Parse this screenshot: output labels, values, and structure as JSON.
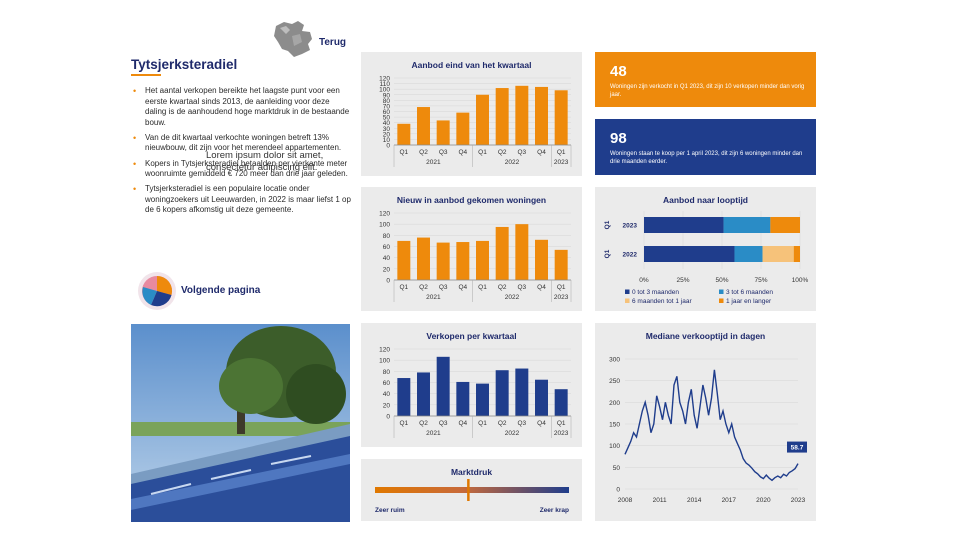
{
  "header": {
    "back_label": "Terug",
    "region_title": "Tytsjerksteradiel"
  },
  "intro": {
    "bullets": [
      "Het aantal verkopen bereikte het laagste punt voor een eerste kwartaal sinds 2013, de aanleiding voor deze daling is de aanhoudend hoge marktdruk in de bestaande bouw.",
      "Van de dit kwartaal verkochte woningen betreft 13% nieuwbouw, dit zijn voor het merendeel appartementen.",
      "Kopers in Tytsjerksteradiel betaalden per vierkante meter woonruimte gemiddeld € 720 meer dan drie jaar geleden.",
      "Tytsjerksteradiel is een populaire locatie onder woningzoekers uit Leeuwarden, in 2022 is maar liefst 1 op de 6 kopers afkomstig uit deze gemeente."
    ],
    "lorem": "Lorem ipsum dolor sit amet, consectetur adipiscing elit."
  },
  "next_page": {
    "label": "Volgende pagina"
  },
  "stats": [
    {
      "number": "48",
      "text": "Woningen zijn verkocht in Q1 2023, dit zijn 10 verkopen minder dan vorig jaar.",
      "color": "#ee8a0c"
    },
    {
      "number": "98",
      "text": "Woningen staan te koop per 1 april 2023, dit zijn 6 woningen minder dan drie maanden eerder.",
      "color": "#1f3d8c"
    }
  ],
  "colors": {
    "orange": "#ee8a0c",
    "navy": "#1f3d8c",
    "blue": "#2a8cc6",
    "light_orange": "#f6c27a",
    "accent_line": "#e07800"
  },
  "chart_data": [
    {
      "id": "aanbod",
      "type": "bar",
      "title": "Aanbod eind van het kwartaal",
      "categories": [
        "Q1",
        "Q2",
        "Q3",
        "Q4",
        "Q1",
        "Q2",
        "Q3",
        "Q4",
        "Q1"
      ],
      "groups": [
        {
          "label": "2021",
          "span": [
            0,
            3
          ]
        },
        {
          "label": "2022",
          "span": [
            4,
            7
          ]
        },
        {
          "label": "2023",
          "span": [
            8,
            8
          ]
        }
      ],
      "values": [
        38,
        68,
        44,
        58,
        90,
        102,
        106,
        104,
        98
      ],
      "yticks": [
        0,
        10,
        20,
        30,
        40,
        50,
        60,
        70,
        80,
        90,
        100,
        110,
        120
      ],
      "ylim": [
        0,
        120
      ],
      "color": "#ee8a0c"
    },
    {
      "id": "nieuw",
      "type": "bar",
      "title": "Nieuw in aanbod gekomen woningen",
      "categories": [
        "Q1",
        "Q2",
        "Q3",
        "Q4",
        "Q1",
        "Q2",
        "Q3",
        "Q4",
        "Q1"
      ],
      "groups": [
        {
          "label": "2021",
          "span": [
            0,
            3
          ]
        },
        {
          "label": "2022",
          "span": [
            4,
            7
          ]
        },
        {
          "label": "2023",
          "span": [
            8,
            8
          ]
        }
      ],
      "values": [
        70,
        76,
        67,
        68,
        70,
        95,
        100,
        72,
        54
      ],
      "yticks": [
        0,
        20,
        40,
        60,
        80,
        100,
        120
      ],
      "ylim": [
        0,
        120
      ],
      "color": "#ee8a0c"
    },
    {
      "id": "verkopen",
      "type": "bar",
      "title": "Verkopen per kwartaal",
      "categories": [
        "Q1",
        "Q2",
        "Q3",
        "Q4",
        "Q1",
        "Q2",
        "Q3",
        "Q4",
        "Q1"
      ],
      "groups": [
        {
          "label": "2021",
          "span": [
            0,
            3
          ]
        },
        {
          "label": "2022",
          "span": [
            4,
            7
          ]
        },
        {
          "label": "2023",
          "span": [
            8,
            8
          ]
        }
      ],
      "values": [
        68,
        78,
        106,
        61,
        58,
        82,
        85,
        65,
        48
      ],
      "yticks": [
        0,
        20,
        40,
        60,
        80,
        100,
        120
      ],
      "ylim": [
        0,
        120
      ],
      "color": "#1f3d8c"
    },
    {
      "id": "looptijd",
      "type": "bar",
      "orientation": "horizontal-stacked-percent",
      "title": "Aanbod naar looptijd",
      "categories": [
        "2023",
        "2022"
      ],
      "group_labels": [
        "Q1",
        "Q1"
      ],
      "series": [
        {
          "name": "0 tot 3 maanden",
          "values": [
            51,
            58
          ],
          "color": "#1f3d8c"
        },
        {
          "name": "3 tot 6 maanden",
          "values": [
            30,
            18
          ],
          "color": "#2a8cc6"
        },
        {
          "name": "6 maanden tot 1 jaar",
          "values": [
            0,
            20
          ],
          "color": "#f6c27a"
        },
        {
          "name": "1 jaar en langer",
          "values": [
            19,
            4
          ],
          "color": "#ee8a0c"
        }
      ],
      "xticks": [
        "0%",
        "25%",
        "50%",
        "75%",
        "100%"
      ],
      "xlim": [
        0,
        100
      ]
    },
    {
      "id": "verkooptijd",
      "type": "line",
      "title": "Mediane verkooptijd in dagen",
      "xticks": [
        2008,
        2011,
        2014,
        2017,
        2020,
        2023
      ],
      "yticks": [
        0,
        50,
        100,
        150,
        200,
        250,
        300
      ],
      "xlim": [
        2008,
        2023
      ],
      "ylim": [
        0,
        300
      ],
      "end_label": "58.7",
      "color": "#1f3d8c",
      "points": [
        [
          2008.0,
          80
        ],
        [
          2008.25,
          95
        ],
        [
          2008.5,
          110
        ],
        [
          2008.75,
          130
        ],
        [
          2009.0,
          120
        ],
        [
          2009.25,
          150
        ],
        [
          2009.5,
          180
        ],
        [
          2009.75,
          200
        ],
        [
          2010.0,
          170
        ],
        [
          2010.25,
          130
        ],
        [
          2010.5,
          150
        ],
        [
          2010.75,
          215
        ],
        [
          2011.0,
          190
        ],
        [
          2011.25,
          160
        ],
        [
          2011.5,
          200
        ],
        [
          2011.75,
          170
        ],
        [
          2012.0,
          150
        ],
        [
          2012.25,
          240
        ],
        [
          2012.5,
          260
        ],
        [
          2012.75,
          200
        ],
        [
          2013.0,
          180
        ],
        [
          2013.25,
          150
        ],
        [
          2013.5,
          200
        ],
        [
          2013.75,
          230
        ],
        [
          2014.0,
          170
        ],
        [
          2014.25,
          140
        ],
        [
          2014.5,
          190
        ],
        [
          2014.75,
          240
        ],
        [
          2015.0,
          210
        ],
        [
          2015.25,
          170
        ],
        [
          2015.5,
          210
        ],
        [
          2015.75,
          275
        ],
        [
          2016.0,
          220
        ],
        [
          2016.25,
          160
        ],
        [
          2016.5,
          180
        ],
        [
          2016.75,
          150
        ],
        [
          2017.0,
          130
        ],
        [
          2017.25,
          150
        ],
        [
          2017.5,
          120
        ],
        [
          2017.75,
          105
        ],
        [
          2018.0,
          90
        ],
        [
          2018.25,
          70
        ],
        [
          2018.5,
          60
        ],
        [
          2018.75,
          55
        ],
        [
          2019.0,
          48
        ],
        [
          2019.25,
          40
        ],
        [
          2019.5,
          35
        ],
        [
          2019.75,
          28
        ],
        [
          2020.0,
          24
        ],
        [
          2020.25,
          32
        ],
        [
          2020.5,
          25
        ],
        [
          2020.75,
          20
        ],
        [
          2021.0,
          26
        ],
        [
          2021.25,
          30
        ],
        [
          2021.5,
          26
        ],
        [
          2021.75,
          34
        ],
        [
          2022.0,
          30
        ],
        [
          2022.25,
          38
        ],
        [
          2022.5,
          42
        ],
        [
          2022.75,
          47
        ],
        [
          2023.0,
          58.7
        ]
      ]
    },
    {
      "id": "marktdruk",
      "type": "gauge",
      "title": "Marktdruk",
      "value": 0.48,
      "left_label": "Zeer ruim",
      "right_label": "Zeer krap"
    }
  ]
}
